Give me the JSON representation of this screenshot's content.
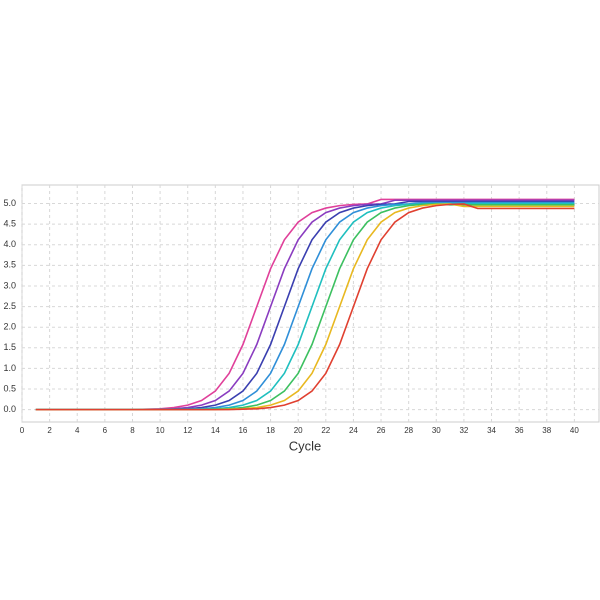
{
  "chart_data": {
    "type": "line",
    "x_label": "Cycle",
    "x": [
      1,
      2,
      3,
      4,
      5,
      6,
      7,
      8,
      9,
      10,
      11,
      12,
      13,
      14,
      15,
      16,
      17,
      18,
      19,
      20,
      21,
      22,
      23,
      24,
      25,
      26,
      27,
      28,
      29,
      30,
      31,
      32,
      33,
      34,
      35,
      36,
      37,
      38,
      39,
      40
    ],
    "xlim": [
      0,
      42
    ],
    "xticks": [
      0,
      2,
      4,
      6,
      8,
      10,
      12,
      14,
      16,
      18,
      20,
      22,
      24,
      26,
      28,
      30,
      32,
      34,
      36,
      38,
      40
    ],
    "ylim": [
      -0.3,
      5.45
    ],
    "yticks": [
      {
        "value": 0,
        "label": "0.0"
      },
      0.5,
      {
        "value": 1,
        "label": "1.0"
      },
      1.5,
      {
        "value": 2,
        "label": "2.0"
      },
      2.5,
      {
        "value": 3,
        "label": "3.0"
      },
      3.5,
      {
        "value": 4,
        "label": "4.0"
      },
      4.5,
      {
        "value": 5,
        "label": "5.0"
      }
    ],
    "grid": true,
    "series": [
      {
        "color": "#e0409a",
        "values": [
          0,
          0,
          0,
          0,
          0,
          0,
          0,
          0,
          0.01,
          0.02,
          0.05,
          0.11,
          0.22,
          0.45,
          0.88,
          1.58,
          2.5,
          3.42,
          4.12,
          4.55,
          4.78,
          4.89,
          4.95,
          4.98,
          4.99,
          5.1,
          5.1,
          5.1,
          5.1,
          5.1,
          5.1,
          5.1,
          5.1,
          5.1,
          5.1,
          5.1,
          5.1,
          5.1,
          5.1,
          5.1
        ]
      },
      {
        "color": "#8a3cc0",
        "values": [
          0,
          0,
          0,
          0,
          0,
          0,
          0,
          0,
          0,
          0.01,
          0.02,
          0.05,
          0.11,
          0.22,
          0.45,
          0.88,
          1.58,
          2.5,
          3.42,
          4.12,
          4.55,
          4.78,
          4.89,
          4.95,
          4.98,
          4.99,
          5.08,
          5.08,
          5.08,
          5.08,
          5.08,
          5.08,
          5.08,
          5.08,
          5.08,
          5.08,
          5.08,
          5.08,
          5.08,
          5.08
        ]
      },
      {
        "color": "#3a3fb0",
        "values": [
          0,
          0,
          0,
          0,
          0,
          0,
          0,
          0,
          0,
          0,
          0.01,
          0.02,
          0.05,
          0.11,
          0.22,
          0.45,
          0.88,
          1.58,
          2.5,
          3.42,
          4.12,
          4.55,
          4.78,
          4.89,
          4.95,
          4.98,
          4.99,
          5.05,
          5.05,
          5.05,
          5.05,
          5.05,
          5.05,
          5.05,
          5.05,
          5.05,
          5.05,
          5.05,
          5.05,
          5.05
        ]
      },
      {
        "color": "#2f8fd8",
        "values": [
          0,
          0,
          0,
          0,
          0,
          0,
          0,
          0,
          0,
          0,
          0,
          0.01,
          0.02,
          0.05,
          0.11,
          0.22,
          0.45,
          0.88,
          1.58,
          2.5,
          3.42,
          4.12,
          4.55,
          4.78,
          4.89,
          4.95,
          4.98,
          4.99,
          5.02,
          5.02,
          5.02,
          5.02,
          5.02,
          5.02,
          5.02,
          5.02,
          5.02,
          5.02,
          5.02,
          5.02
        ]
      },
      {
        "color": "#1fbfbf",
        "values": [
          0,
          0,
          0,
          0,
          0,
          0,
          0,
          0,
          0,
          0,
          0,
          0,
          0.01,
          0.02,
          0.05,
          0.11,
          0.22,
          0.45,
          0.88,
          1.58,
          2.5,
          3.42,
          4.12,
          4.55,
          4.78,
          4.89,
          4.95,
          4.98,
          4.99,
          5.0,
          5.0,
          5.0,
          5.0,
          5.0,
          5.0,
          5.0,
          5.0,
          5.0,
          5.0,
          5.0
        ]
      },
      {
        "color": "#3cc060",
        "values": [
          0,
          0,
          0,
          0,
          0,
          0,
          0,
          0,
          0,
          0,
          0,
          0,
          0,
          0.01,
          0.02,
          0.05,
          0.11,
          0.22,
          0.45,
          0.88,
          1.58,
          2.5,
          3.42,
          4.12,
          4.55,
          4.78,
          4.89,
          4.95,
          4.98,
          4.99,
          4.97,
          4.97,
          4.97,
          4.97,
          4.97,
          4.97,
          4.97,
          4.97,
          4.97,
          4.97
        ]
      },
      {
        "color": "#e8b820",
        "values": [
          0,
          0,
          0,
          0,
          0,
          0,
          0,
          0,
          0,
          0,
          0,
          0,
          0,
          0,
          0.01,
          0.02,
          0.05,
          0.11,
          0.22,
          0.45,
          0.88,
          1.58,
          2.5,
          3.42,
          4.12,
          4.55,
          4.78,
          4.89,
          4.95,
          4.98,
          4.99,
          4.93,
          4.93,
          4.93,
          4.93,
          4.93,
          4.93,
          4.93,
          4.93,
          4.93
        ]
      },
      {
        "color": "#e04030",
        "values": [
          0,
          0,
          0,
          0,
          0,
          0,
          0,
          0,
          0,
          0,
          0,
          0,
          0,
          0,
          0,
          0.01,
          0.02,
          0.05,
          0.11,
          0.22,
          0.45,
          0.88,
          1.58,
          2.5,
          3.42,
          4.12,
          4.55,
          4.78,
          4.89,
          4.95,
          4.98,
          4.99,
          4.88,
          4.88,
          4.88,
          4.88,
          4.88,
          4.88,
          4.88,
          4.88
        ]
      }
    ]
  }
}
